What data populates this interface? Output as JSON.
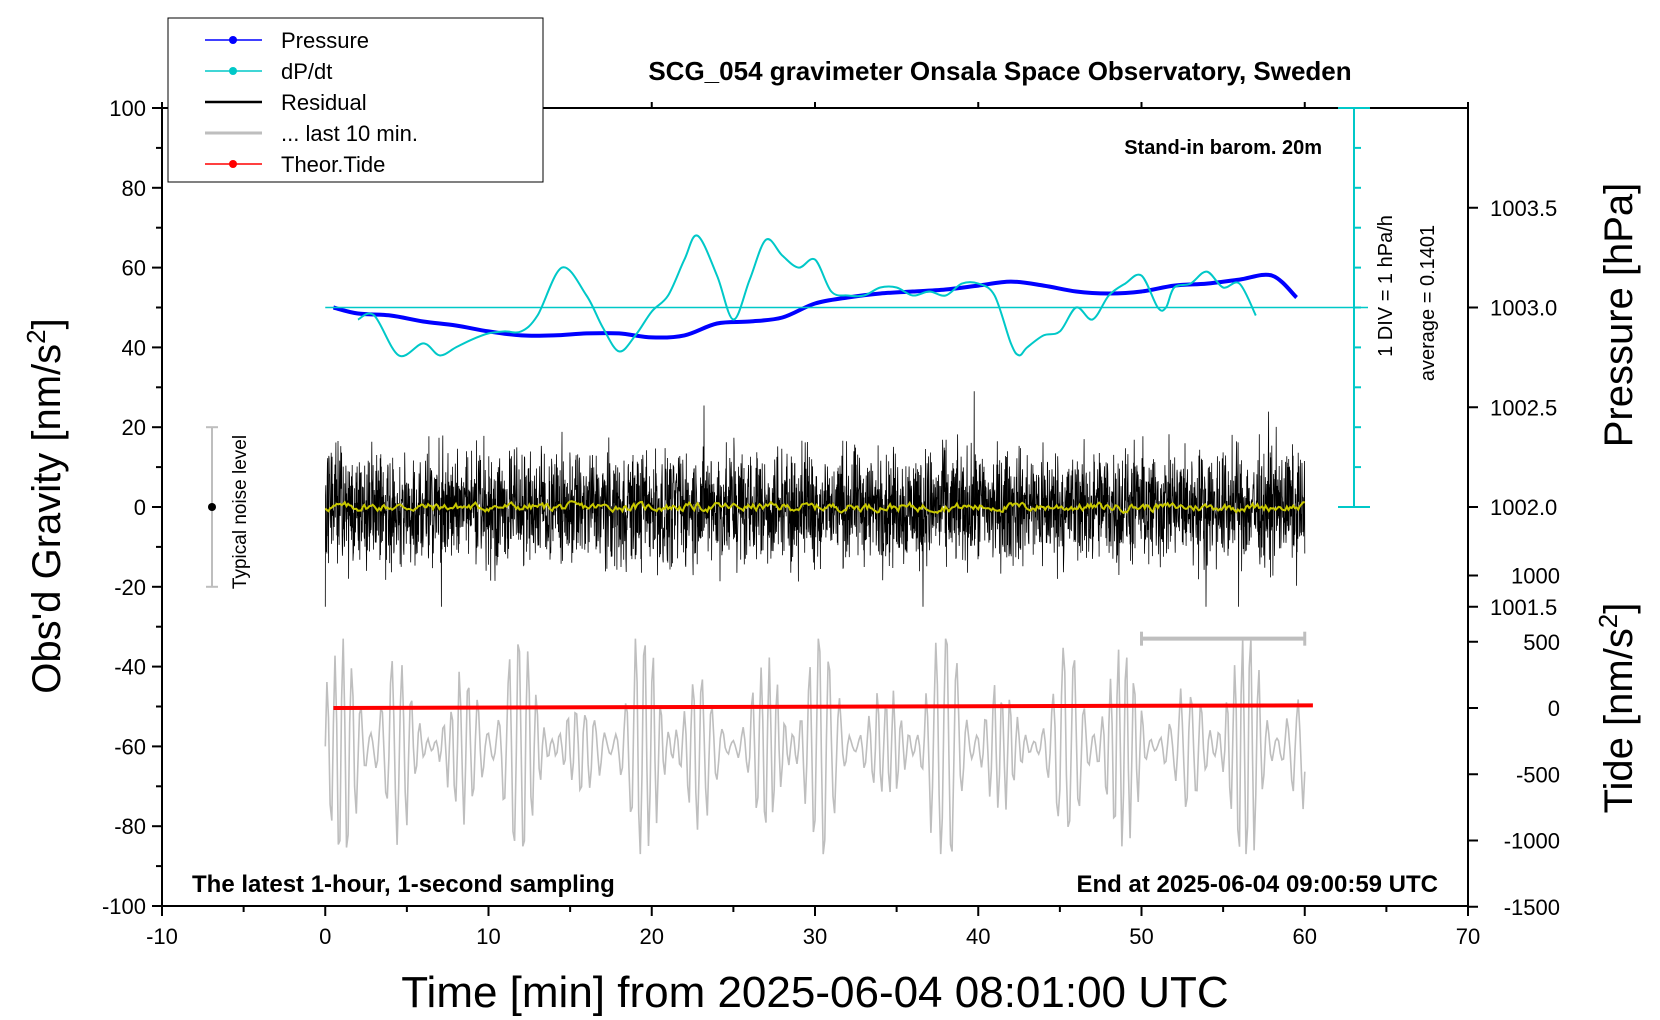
{
  "chart_data": {
    "type": "line",
    "title": "SCG_054 gravimeter Onsala Space Observatory, Sweden",
    "xlabel": "Time [min] from 2025-06-04 08:01:00 UTC",
    "ylabel": "Obs'd Gravity [nm/s",
    "ylabel_sup": "2",
    "ylabel_close": "]",
    "ylabel_right_top": "Pressure [hPa]",
    "ylabel_right_bottom": "Tide [nm/s",
    "ylabel_right_bottom_sup": "2",
    "ylabel_right_bottom_close": "]",
    "xlim": [
      -10,
      70
    ],
    "ylim": [
      -100,
      100
    ],
    "pressure_lim": [
      1001.0,
      1004.0
    ],
    "tide_lim": [
      -1500,
      1500
    ],
    "x_ticks": [
      "-10",
      "0",
      "10",
      "20",
      "30",
      "40",
      "50",
      "60",
      "70"
    ],
    "y_ticks": [
      "100",
      "80",
      "60",
      "40",
      "20",
      "0",
      "-20",
      "-40",
      "-60",
      "-80",
      "-100"
    ],
    "pressure_ticks": [
      "1003.5",
      "1003.0",
      "1002.5",
      "1002.0",
      "1001.5"
    ],
    "tide_ticks": [
      "1000",
      "500",
      "0",
      "-500",
      "-1000",
      "-1500"
    ],
    "grid": false,
    "legend_position": "top-left",
    "legend": [
      {
        "name": "Pressure",
        "color": "#0000ff"
      },
      {
        "name": "dP/dt",
        "color": "#00c8c8"
      },
      {
        "name": "Residual",
        "color": "#000000"
      },
      {
        "name": "... last 10 min.",
        "color": "#bebebe"
      },
      {
        "name": "Theor.Tide",
        "color": "#ff0000"
      }
    ],
    "annotations": {
      "barometer": "Stand-in barom. 20m",
      "div": "1 DIV = 1 hPa/h",
      "average": "average = 0.1401",
      "noise": "Typical noise level",
      "bottom_left": "The latest 1-hour, 1-second sampling",
      "bottom_right": "End at 2025-06-04 09:00:59 UTC"
    },
    "series": [
      {
        "name": "Pressure",
        "unit": "hPa",
        "x": [
          0.5,
          2,
          4,
          6,
          8,
          10,
          12,
          14,
          16,
          18,
          20,
          22,
          24,
          26,
          28,
          30,
          32,
          34,
          36,
          38,
          40,
          42,
          44,
          46,
          48,
          50,
          52,
          54,
          56,
          58,
          59.5
        ],
        "values": [
          1003.0,
          1002.97,
          1002.96,
          1002.93,
          1002.91,
          1002.88,
          1002.86,
          1002.86,
          1002.87,
          1002.87,
          1002.85,
          1002.86,
          1002.92,
          1002.93,
          1002.95,
          1003.02,
          1003.05,
          1003.07,
          1003.08,
          1003.09,
          1003.11,
          1003.13,
          1003.11,
          1003.08,
          1003.07,
          1003.08,
          1003.11,
          1003.12,
          1003.14,
          1003.16,
          1003.05
        ]
      },
      {
        "name": "dP/dt",
        "x": [
          2,
          3,
          4.5,
          6,
          7,
          8,
          9,
          10,
          11,
          12,
          13,
          14.5,
          16,
          17,
          18,
          19,
          20,
          21,
          22,
          22.8,
          24,
          25,
          26,
          27,
          28,
          29,
          30,
          31,
          32,
          33,
          34,
          35,
          36,
          37,
          38,
          39,
          40,
          41,
          42,
          42.5,
          43,
          44,
          45,
          46,
          47,
          48,
          49,
          50,
          51,
          51.5,
          52,
          53,
          54,
          55,
          56,
          57
        ],
        "values": [
          47,
          48,
          38,
          41,
          38,
          40,
          42,
          43.5,
          44,
          44,
          48,
          60,
          53,
          45,
          39,
          43,
          49,
          53,
          62,
          68,
          58,
          47,
          57,
          67,
          63,
          60,
          62,
          54,
          53,
          53,
          55,
          55,
          53,
          54,
          53,
          56,
          56,
          53,
          41,
          38,
          40,
          43,
          44,
          50,
          47,
          53,
          56,
          58,
          50,
          50,
          55,
          56,
          59,
          55,
          56,
          48
        ]
      },
      {
        "name": "Residual",
        "x_range": [
          0,
          60
        ],
        "envelope_nm_s2": [
          -25,
          29
        ],
        "mean": 0
      },
      {
        "name": "... last 10 min.",
        "x_range": [
          0,
          60
        ],
        "envelope_nm_s2": [
          -87,
          -33
        ],
        "bar_x_range": [
          50,
          60
        ]
      },
      {
        "name": "Theor.Tide",
        "unit": "nm/s2",
        "x": [
          0.5,
          60.5
        ],
        "values": [
          0,
          20
        ]
      }
    ]
  }
}
